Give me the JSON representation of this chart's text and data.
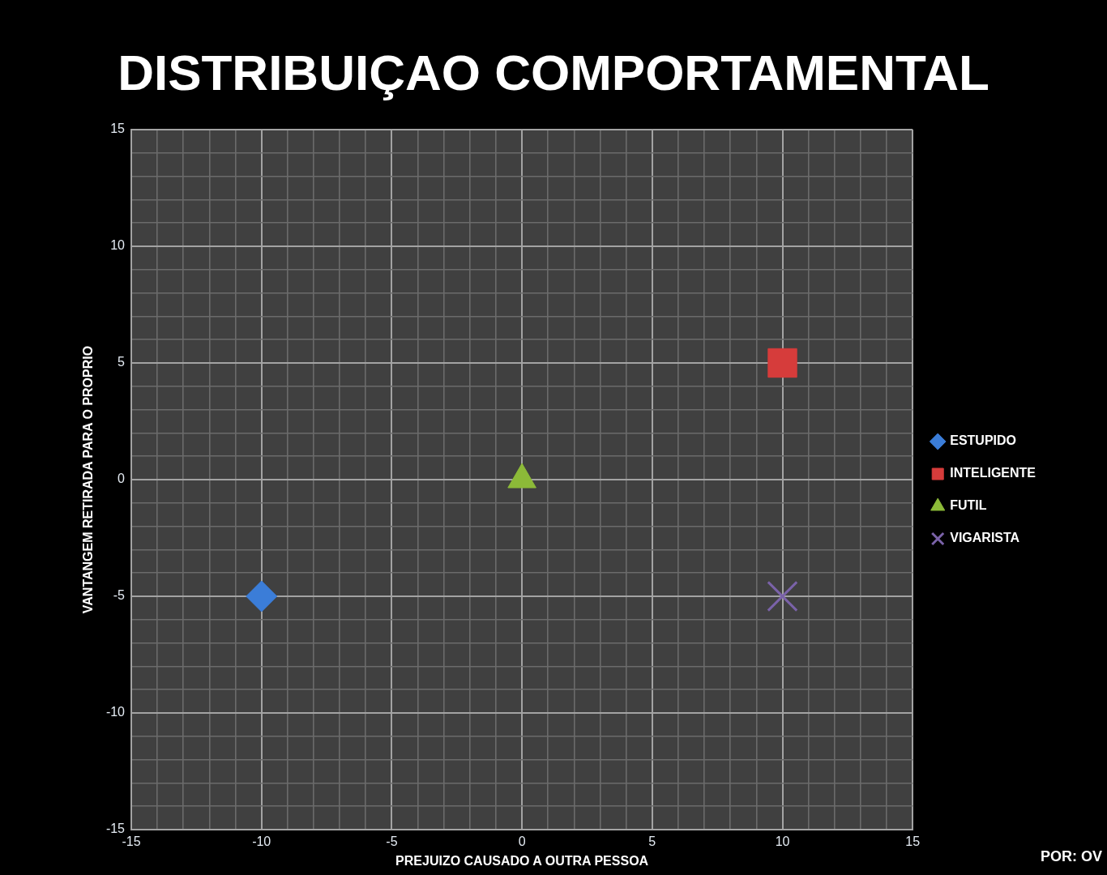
{
  "chart_data": {
    "type": "scatter",
    "title": "DISTRIBUIÇAO COMPORTAMENTAL",
    "xlabel": "PREJUIZO CAUSADO A OUTRA PESSOA",
    "ylabel": "VANTANGEM RETIRADA PARA O PROPRIO",
    "annotations": [
      "POR: OV"
    ],
    "series": [
      {
        "name": "ESTUPIDO",
        "color": "#3b7dd8",
        "marker": "diamond",
        "x": [
          -10
        ],
        "values": [
          -5
        ]
      },
      {
        "name": "INTELIGENTE",
        "color": "#d63c3b",
        "marker": "square",
        "x": [
          10
        ],
        "values": [
          5
        ]
      },
      {
        "name": "FUTIL",
        "color": "#8cba38",
        "marker": "triangle",
        "x": [
          0
        ],
        "values": [
          0
        ]
      },
      {
        "name": "VIGARISTA",
        "color": "#7a62a8",
        "marker": "cross",
        "x": [
          10
        ],
        "values": [
          -5
        ]
      }
    ],
    "xlim": [
      -15,
      15
    ],
    "ylim": [
      -15,
      15
    ],
    "xticks": [
      -15,
      {
        "value": -14,
        "label": null
      },
      {
        "value": -13,
        "label": null
      },
      {
        "value": -12,
        "label": null
      },
      {
        "value": -11,
        "label": null
      },
      -10,
      {
        "value": -9,
        "label": null
      },
      {
        "value": -8,
        "label": null
      },
      {
        "value": -7,
        "label": null
      },
      {
        "value": -6,
        "label": null
      },
      -5,
      {
        "value": -4,
        "label": null
      },
      {
        "value": -3,
        "label": null
      },
      {
        "value": -2,
        "label": null
      },
      {
        "value": -1,
        "label": null
      },
      0,
      {
        "value": 1,
        "label": null
      },
      {
        "value": 2,
        "label": null
      },
      {
        "value": 3,
        "label": null
      },
      {
        "value": 4,
        "label": null
      },
      5,
      {
        "value": 6,
        "label": null
      },
      {
        "value": 7,
        "label": null
      },
      {
        "value": 8,
        "label": null
      },
      {
        "value": 9,
        "label": null
      },
      10,
      {
        "value": 11,
        "label": null
      },
      {
        "value": 12,
        "label": null
      },
      {
        "value": 13,
        "label": null
      },
      {
        "value": 14,
        "label": null
      },
      15
    ],
    "yticks": [
      -15,
      {
        "value": -14,
        "label": null
      },
      {
        "value": -13,
        "label": null
      },
      {
        "value": -12,
        "label": null
      },
      {
        "value": -11,
        "label": null
      },
      -10,
      {
        "value": -9,
        "label": null
      },
      {
        "value": -8,
        "label": null
      },
      {
        "value": -7,
        "label": null
      },
      {
        "value": -6,
        "label": null
      },
      -5,
      {
        "value": -4,
        "label": null
      },
      {
        "value": -3,
        "label": null
      },
      {
        "value": -2,
        "label": null
      },
      {
        "value": -1,
        "label": null
      },
      0,
      {
        "value": 1,
        "label": null
      },
      {
        "value": 2,
        "label": null
      },
      {
        "value": 3,
        "label": null
      },
      {
        "value": 4,
        "label": null
      },
      5,
      {
        "value": 6,
        "label": null
      },
      {
        "value": 7,
        "label": null
      },
      {
        "value": 8,
        "label": null
      },
      {
        "value": 9,
        "label": null
      },
      10,
      {
        "value": 11,
        "label": null
      },
      {
        "value": 12,
        "label": null
      },
      {
        "value": 13,
        "label": null
      },
      {
        "value": 14,
        "label": null
      },
      15
    ],
    "grid": true,
    "legend": "right"
  }
}
